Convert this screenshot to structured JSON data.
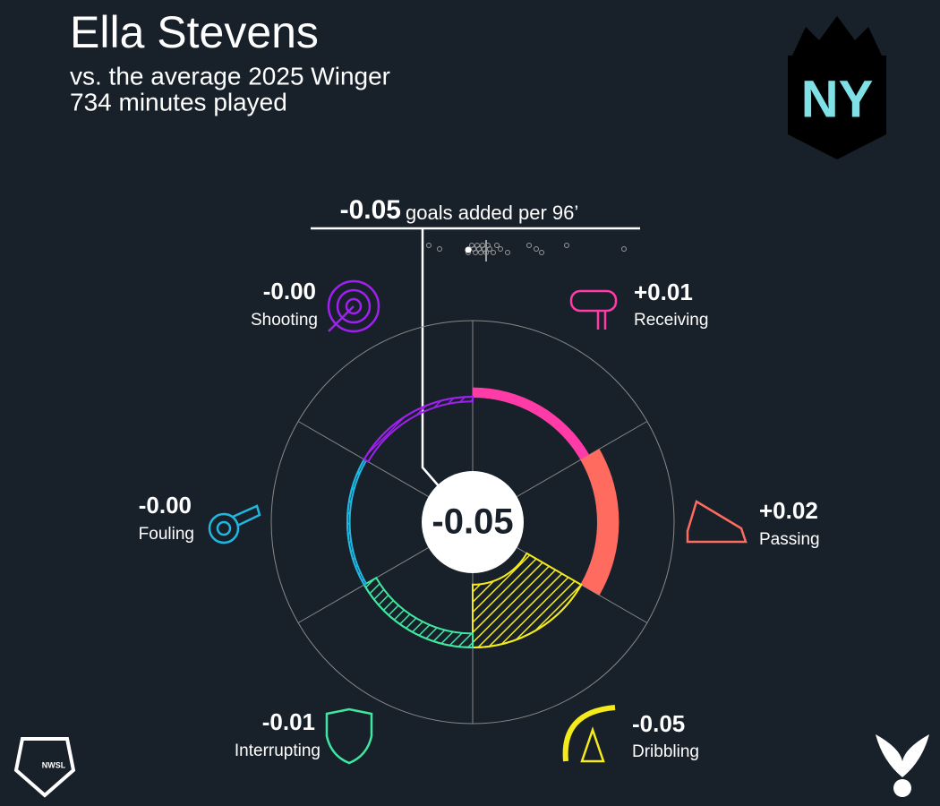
{
  "chart_data": {
    "type": "polar-bar",
    "title": "Ella Stevens",
    "subtitle": "vs. the average 2025 Winger",
    "note": "734 minutes played",
    "total": -0.05,
    "total_caption": "goals added per 96’",
    "categories": [
      "Receiving",
      "Passing",
      "Dribbling",
      "Interrupting",
      "Fouling",
      "Shooting"
    ],
    "values": [
      0.008,
      0.018,
      -0.054,
      -0.012,
      -0.002,
      -0.004
    ],
    "value_labels": [
      "+0.01",
      "+0.02",
      "-0.05",
      "-0.01",
      "-0.00",
      "-0.00"
    ],
    "colors": [
      "#ff3ba7",
      "#ff6b5e",
      "#f5ea1a",
      "#3fe8a0",
      "#1fb6e0",
      "#a020f0"
    ],
    "distribution": [
      -0.16,
      -0.13,
      -0.05,
      -0.04,
      -0.035,
      -0.03,
      -0.025,
      -0.02,
      -0.015,
      -0.01,
      -0.005,
      0.0,
      0.005,
      0.01,
      0.02,
      0.03,
      0.04,
      0.06,
      0.12,
      0.14,
      0.155,
      0.225,
      0.385
    ],
    "logos": {
      "team": "NY",
      "league": "NWSL"
    }
  }
}
